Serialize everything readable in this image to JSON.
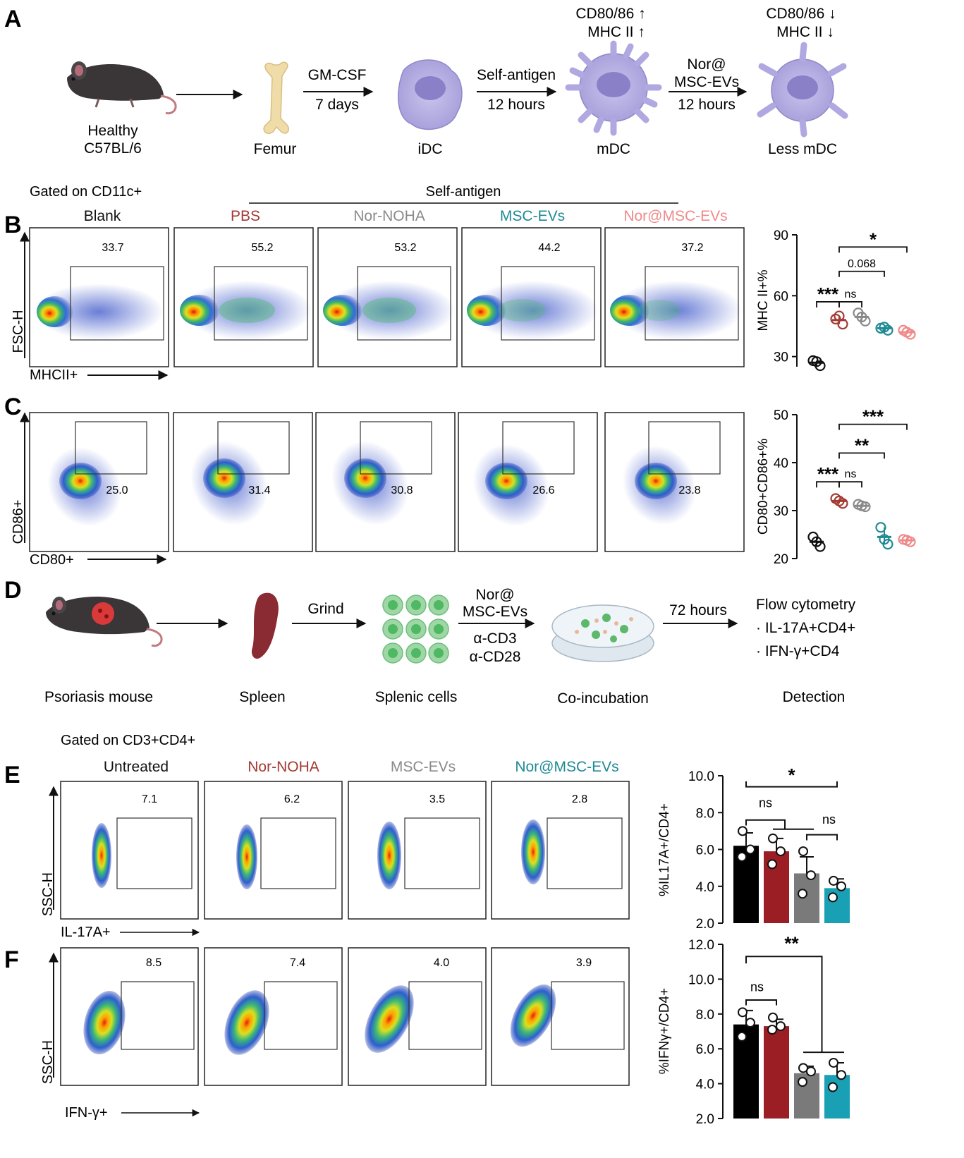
{
  "panel_letters": {
    "a": "A",
    "b": "B",
    "c": "C",
    "d": "D",
    "e": "E",
    "f": "F"
  },
  "panel_a": {
    "mouse_label_1": "Healthy",
    "mouse_label_2": "C57BL/6",
    "femur_label": "Femur",
    "arrow2_top": "GM-CSF",
    "arrow2_bottom": "7 days",
    "idc_label": "iDC",
    "arrow3_top": "Self-antigen",
    "arrow3_bottom": "12 hours",
    "mdc_marker_1": "CD80/86 ↑",
    "mdc_marker_2": "MHC II ↑",
    "mdc_label": "mDC",
    "arrow4_line1": "Nor@",
    "arrow4_line2": "MSC-EVs",
    "arrow4_line3": "12 hours",
    "less_marker_1": "CD80/86 ↓",
    "less_marker_2": "MHC II ↓",
    "less_label": "Less mDC"
  },
  "panel_b": {
    "gate_label": "Gated on CD11c+",
    "self_antigen_label": "Self-antigen",
    "groups": [
      "Blank",
      "PBS",
      "Nor-NOHA",
      "MSC-EVs",
      "Nor@MSC-EVs"
    ],
    "group_colors": [
      "#111111",
      "#a33a33",
      "#8a8a8a",
      "#1d8a94",
      "#ef8a8a"
    ],
    "gate_values": [
      "33.7",
      "55.2",
      "53.2",
      "44.2",
      "37.2"
    ],
    "y_axis": "FSC-H",
    "x_axis": "MHCII+"
  },
  "panel_c": {
    "gate_values": [
      "25.0",
      "31.4",
      "30.8",
      "26.6",
      "23.8"
    ],
    "y_axis": "CD86+",
    "x_axis": "CD80+"
  },
  "panel_d": {
    "mouse_label": "Psoriasis mouse",
    "spleen_label": "Spleen",
    "grind_label": "Grind",
    "cells_label": "Splenic cells",
    "treat_1": "Nor@",
    "treat_2": "MSC-EVs",
    "treat_3": "α-CD3",
    "treat_4": "α-CD28",
    "incubation_label": "Co-incubation",
    "time_label": "72 hours",
    "flow_title": "Flow cytometry",
    "flow_item_1": "· IL-17A+CD4+",
    "flow_item_2": "· IFN-γ+CD4",
    "detection_label": "Detection"
  },
  "panel_e": {
    "gate_label": "Gated on CD3+CD4+",
    "groups": [
      "Untreated",
      "Nor-NOHA",
      "MSC-EVs",
      "Nor@MSC-EVs"
    ],
    "group_colors": [
      "#111111",
      "#a33a33",
      "#8a8a8a",
      "#1d8a94"
    ],
    "gate_values": [
      "7.1",
      "6.2",
      "3.5",
      "2.8"
    ],
    "y_axis": "SSC-H",
    "x_axis": "IL-17A+"
  },
  "panel_f": {
    "gate_values": [
      "8.5",
      "7.4",
      "4.0",
      "3.9"
    ],
    "y_axis": "SSC-H",
    "x_axis": "IFN-γ+"
  },
  "chart_data": [
    {
      "type": "scatter",
      "id": "mhc",
      "ylabel": "MHC II+%",
      "ylim": [
        25,
        90
      ],
      "yticks": [
        30,
        60,
        90
      ],
      "categories": [
        "Blank",
        "PBS",
        "Nor-NOHA",
        "MSC-EVs",
        "Nor@MSC-EVs"
      ],
      "colors": [
        "#111111",
        "#a33a33",
        "#8a8a8a",
        "#1d8a94",
        "#ef8a8a"
      ],
      "means": [
        27,
        48,
        49.5,
        44,
        42
      ],
      "points": [
        [
          28,
          25.5,
          27.5
        ],
        [
          48.5,
          46,
          50
        ],
        [
          51.5,
          47.5,
          49.5
        ],
        [
          44,
          43,
          44.5
        ],
        [
          43,
          41,
          42
        ]
      ],
      "annotations": [
        {
          "label": "***",
          "from": 0,
          "to": 1,
          "y": 57
        },
        {
          "label": "ns",
          "from": 1,
          "to": 2,
          "y": 57
        },
        {
          "label": "0.068",
          "from": 1,
          "to": 3,
          "y": 72
        },
        {
          "label": "*",
          "from": 1,
          "to": 4,
          "y": 84
        }
      ]
    },
    {
      "type": "scatter",
      "id": "cd8086",
      "ylabel": "CD80+CD86+%",
      "ylim": [
        20,
        50
      ],
      "yticks": [
        20,
        30,
        40,
        50
      ],
      "categories": [
        "Blank",
        "PBS",
        "Nor-NOHA",
        "MSC-EVs",
        "Nor@MSC-EVs"
      ],
      "colors": [
        "#111111",
        "#a33a33",
        "#8a8a8a",
        "#1d8a94",
        "#ef8a8a"
      ],
      "means": [
        23.5,
        32,
        31,
        24.5,
        23.8
      ],
      "points": [
        [
          24.5,
          22.5,
          23.5
        ],
        [
          32.5,
          31.5,
          32
        ],
        [
          31.3,
          30.8,
          31
        ],
        [
          26.5,
          23,
          24
        ],
        [
          24,
          23.5,
          23.8
        ]
      ],
      "annotations": [
        {
          "label": "***",
          "from": 0,
          "to": 1,
          "y": 36
        },
        {
          "label": "ns",
          "from": 1,
          "to": 2,
          "y": 36
        },
        {
          "label": "**",
          "from": 1,
          "to": 3,
          "y": 42
        },
        {
          "label": "***",
          "from": 1,
          "to": 4,
          "y": 48
        }
      ]
    },
    {
      "type": "bar",
      "id": "il17",
      "ylabel": "%IL17A+/CD4+",
      "ylim": [
        2,
        10
      ],
      "yticks": [
        "2.0",
        "4.0",
        "6.0",
        "8.0",
        "10.0"
      ],
      "categories": [
        "Untreated",
        "Nor-NOHA",
        "MSC-EVs",
        "Nor@MSC-EVs"
      ],
      "colors": [
        "#000000",
        "#9a1e23",
        "#7a7a7a",
        "#1aa0b4"
      ],
      "values": [
        6.2,
        5.9,
        4.7,
        3.9
      ],
      "errors": [
        0.7,
        0.7,
        0.9,
        0.5
      ],
      "points": [
        [
          7.0,
          5.6,
          6.0
        ],
        [
          6.6,
          5.2,
          5.9
        ],
        [
          5.9,
          3.6,
          4.6
        ],
        [
          4.3,
          3.4,
          4.0
        ]
      ],
      "annotations": [
        "*",
        "ns",
        "ns"
      ]
    },
    {
      "type": "bar",
      "id": "ifng",
      "ylabel": "%IFNγ+/CD4+",
      "ylim": [
        2,
        12
      ],
      "yticks": [
        "2.0",
        "4.0",
        "6.0",
        "8.0",
        "10.0",
        "12.0"
      ],
      "categories": [
        "Untreated",
        "Nor-NOHA",
        "MSC-EVs",
        "Nor@MSC-EVs"
      ],
      "colors": [
        "#000000",
        "#9a1e23",
        "#7a7a7a",
        "#1aa0b4"
      ],
      "values": [
        7.4,
        7.3,
        4.6,
        4.5
      ],
      "errors": [
        0.8,
        0.4,
        0.4,
        0.7
      ],
      "points": [
        [
          8.1,
          6.7,
          7.5
        ],
        [
          7.8,
          7.1,
          7.3
        ],
        [
          4.9,
          4.1,
          4.7
        ],
        [
          5.2,
          3.8,
          4.5
        ]
      ],
      "annotations": [
        "**",
        "ns"
      ]
    }
  ]
}
